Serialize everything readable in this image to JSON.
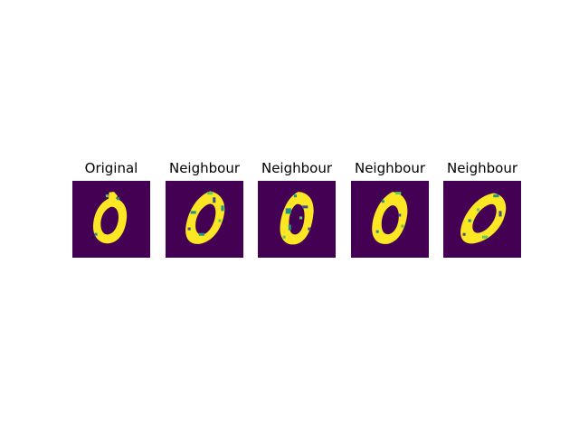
{
  "figure": {
    "colormap": "viridis",
    "colors": {
      "background": "#440154",
      "foreground": "#fde725",
      "mid_teal": "#21918c",
      "mid_blue": "#3b528b",
      "mid_green": "#5ec962"
    },
    "panels": [
      {
        "title": "Original",
        "variant": "original"
      },
      {
        "title": "Neighbour",
        "variant": "n1"
      },
      {
        "title": "Neighbour",
        "variant": "n2"
      },
      {
        "title": "Neighbour",
        "variant": "n3"
      },
      {
        "title": "Neighbour",
        "variant": "n4"
      }
    ]
  }
}
